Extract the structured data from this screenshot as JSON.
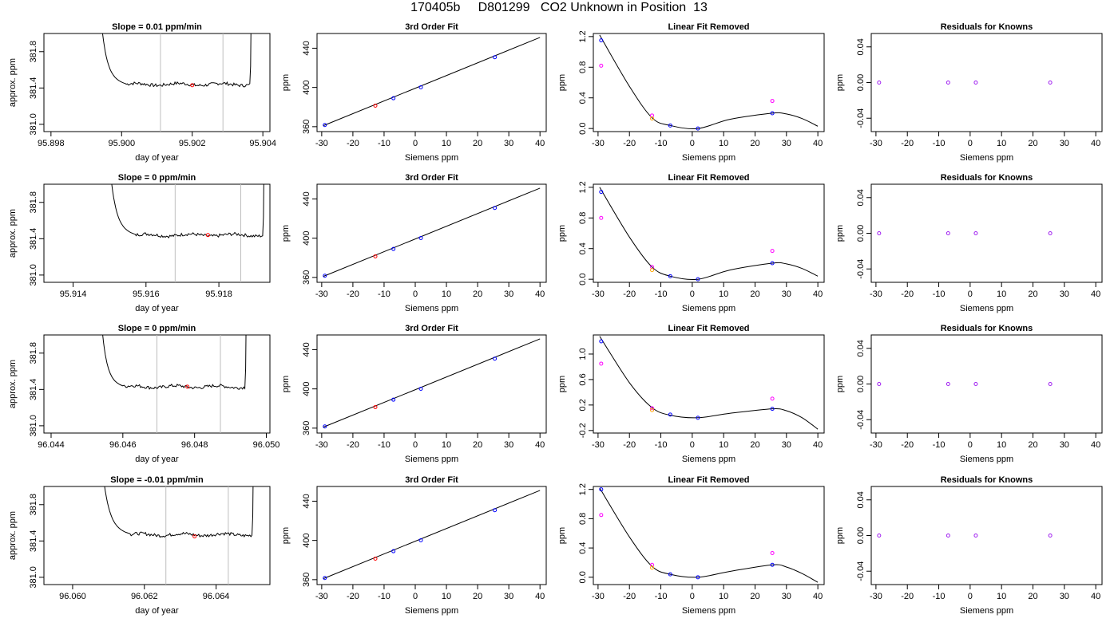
{
  "page_title": "170405b     D801299   CO2 Unknown in Position  13",
  "colors": {
    "line": "#000000",
    "reference": "#bebebe",
    "known_point": "#0000ff",
    "unknown_point": "#ff0000",
    "initial_fit": "#ff00ff",
    "alt_point": "#ffa500",
    "residual_point": "#a020f0"
  },
  "chart_data": [
    {
      "type": "line",
      "panel": "trace",
      "row": 0,
      "title": "Slope =  0.01  ppm/min",
      "xlabel": "day of year",
      "ylabel": "approx. ppm",
      "xlim": [
        95.8978,
        95.9042
      ],
      "ylim": [
        380.92,
        382.0
      ],
      "xticks": [
        95.898,
        95.9,
        95.902,
        95.904
      ],
      "xtick_labels": [
        "95.898",
        "95.900",
        "95.902",
        "95.904"
      ],
      "yticks": [
        381.0,
        381.4,
        381.8
      ],
      "ytick_labels": [
        "381.0",
        "381.4",
        "381.8"
      ],
      "vlines": [
        95.9011,
        95.90287
      ],
      "trace": {
        "x_start": 95.9001,
        "x_end": 95.90363,
        "x_rise": 95.8993,
        "x_end_rise": 95.9036,
        "level": 381.44
      },
      "marker": {
        "x": 95.902,
        "y": 381.43
      }
    },
    {
      "type": "line",
      "panel": "trace",
      "row": 1,
      "title": "Slope =  0  ppm/min",
      "xlabel": "day of year",
      "ylabel": "approx. ppm",
      "xlim": [
        95.9132,
        95.9194
      ],
      "ylim": [
        380.92,
        382.0
      ],
      "xticks": [
        95.914,
        95.916,
        95.918
      ],
      "xtick_labels": [
        "95.914",
        "95.916",
        "95.918"
      ],
      "yticks": [
        381.0,
        381.4,
        381.8
      ],
      "ytick_labels": [
        "381.0",
        "381.4",
        "381.8"
      ],
      "vlines": [
        95.9168,
        95.9186
      ],
      "trace": {
        "x_start": 95.9157,
        "x_end": 95.9192,
        "x_rise": 95.9149,
        "x_end_rise": 95.9192,
        "level": 381.44
      },
      "marker": {
        "x": 95.9177,
        "y": 381.44
      }
    },
    {
      "type": "line",
      "panel": "trace",
      "row": 2,
      "title": "Slope =  0  ppm/min",
      "xlabel": "day of year",
      "ylabel": "approx. ppm",
      "xlim": [
        96.0438,
        96.0501
      ],
      "ylim": [
        380.92,
        382.0
      ],
      "xticks": [
        96.044,
        96.046,
        96.048,
        96.05
      ],
      "xtick_labels": [
        "96.044",
        "96.046",
        "96.048",
        "96.050"
      ],
      "yticks": [
        381.0,
        381.4,
        381.8
      ],
      "ytick_labels": [
        "381.0",
        "381.4",
        "381.8"
      ],
      "vlines": [
        96.04695,
        96.04872
      ],
      "trace": {
        "x_start": 96.046,
        "x_end": 96.0494,
        "x_rise": 96.0453,
        "x_end_rise": 96.0494,
        "level": 381.43
      },
      "marker": {
        "x": 96.0478,
        "y": 381.43
      }
    },
    {
      "type": "line",
      "panel": "trace",
      "row": 3,
      "title": "Slope =  -0.01  ppm/min",
      "xlabel": "day of year",
      "ylabel": "approx. ppm",
      "xlim": [
        96.0592,
        96.0655
      ],
      "ylim": [
        380.92,
        382.0
      ],
      "xticks": [
        96.06,
        96.062,
        96.064
      ],
      "xtick_labels": [
        "96.060",
        "96.062",
        "96.064"
      ],
      "yticks": [
        381.0,
        381.4,
        381.8
      ],
      "ytick_labels": [
        "381.0",
        "381.4",
        "381.8"
      ],
      "vlines": [
        96.0626,
        96.06434
      ],
      "trace": {
        "x_start": 96.0616,
        "x_end": 96.065,
        "x_rise": 96.0607,
        "x_end_rise": 96.065,
        "level": 381.47
      },
      "marker": {
        "x": 96.0634,
        "y": 381.45
      }
    },
    {
      "type": "scatter",
      "panel": "fit",
      "row": 0,
      "title": "3rd Order Fit",
      "xlabel": "Siemens ppm",
      "ylabel": "ppm",
      "xlim": [
        -31.5,
        42.0
      ],
      "ylim": [
        355,
        455
      ],
      "xticks": [
        -30,
        -20,
        -10,
        0,
        10,
        20,
        30,
        40
      ],
      "yticks": [
        360,
        400,
        440
      ],
      "ytick_labels": [
        "360",
        "400",
        "440"
      ],
      "fit_line": [
        [
          -29.5,
          361.0
        ],
        [
          40.0,
          451.0
        ]
      ],
      "known_points": [
        [
          -29,
          361.7
        ],
        [
          -7,
          389.0
        ],
        [
          1.8,
          400.1
        ],
        [
          25.5,
          430.8
        ]
      ],
      "unknown_points": [
        [
          -12.8,
          381.4
        ]
      ]
    },
    {
      "type": "scatter",
      "panel": "fit",
      "row": 1,
      "title": "3rd Order Fit",
      "xlabel": "Siemens ppm",
      "ylabel": "ppm",
      "xlim": [
        -31.5,
        42.0
      ],
      "ylim": [
        355,
        455
      ],
      "xticks": [
        -30,
        -20,
        -10,
        0,
        10,
        20,
        30,
        40
      ],
      "yticks": [
        360,
        400,
        440
      ],
      "ytick_labels": [
        "360",
        "400",
        "440"
      ],
      "fit_line": [
        [
          -29.5,
          361.0
        ],
        [
          40.0,
          451.0
        ]
      ],
      "known_points": [
        [
          -29,
          361.7
        ],
        [
          -7,
          389.0
        ],
        [
          1.8,
          400.1
        ],
        [
          25.5,
          430.8
        ]
      ],
      "unknown_points": [
        [
          -12.8,
          381.4
        ]
      ]
    },
    {
      "type": "scatter",
      "panel": "fit",
      "row": 2,
      "title": "3rd Order Fit",
      "xlabel": "Siemens ppm",
      "ylabel": "ppm",
      "xlim": [
        -31.5,
        42.0
      ],
      "ylim": [
        355,
        455
      ],
      "xticks": [
        -30,
        -20,
        -10,
        0,
        10,
        20,
        30,
        40
      ],
      "yticks": [
        360,
        400,
        440
      ],
      "ytick_labels": [
        "360",
        "400",
        "440"
      ],
      "fit_line": [
        [
          -29.5,
          361.0
        ],
        [
          40.0,
          451.0
        ]
      ],
      "known_points": [
        [
          -29,
          361.7
        ],
        [
          -7,
          389.0
        ],
        [
          1.8,
          400.1
        ],
        [
          25.5,
          430.8
        ]
      ],
      "unknown_points": [
        [
          -12.8,
          381.4
        ]
      ]
    },
    {
      "type": "scatter",
      "panel": "fit",
      "row": 3,
      "title": "3rd Order Fit",
      "xlabel": "Siemens ppm",
      "ylabel": "ppm",
      "xlim": [
        -31.5,
        42.0
      ],
      "ylim": [
        355,
        455
      ],
      "xticks": [
        -30,
        -20,
        -10,
        0,
        10,
        20,
        30,
        40
      ],
      "yticks": [
        360,
        400,
        440
      ],
      "ytick_labels": [
        "360",
        "400",
        "440"
      ],
      "fit_line": [
        [
          -29.5,
          361.0
        ],
        [
          40.0,
          451.0
        ]
      ],
      "known_points": [
        [
          -29,
          361.7
        ],
        [
          -7,
          389.0
        ],
        [
          1.8,
          400.1
        ],
        [
          25.5,
          430.8
        ]
      ],
      "unknown_points": [
        [
          -12.8,
          381.4
        ]
      ]
    },
    {
      "type": "scatter",
      "panel": "linear-removed",
      "row": 0,
      "title": "Linear Fit Removed",
      "xlabel": "Siemens ppm",
      "ylabel": "ppm",
      "xlim": [
        -31.5,
        42.0
      ],
      "ylim": [
        -0.04,
        1.24
      ],
      "xticks": [
        -30,
        -20,
        -10,
        0,
        10,
        20,
        30,
        40
      ],
      "yticks": [
        0.0,
        0.4,
        0.8,
        1.2
      ],
      "ytick_labels": [
        "0.0",
        "0.4",
        "0.8",
        "1.2"
      ],
      "curve_knots": [
        [
          -29.5,
          1.22
        ],
        [
          -20,
          0.55
        ],
        [
          -12.8,
          0.14
        ],
        [
          -7,
          0.04
        ],
        [
          1.8,
          0.0
        ],
        [
          12,
          0.12
        ],
        [
          25.5,
          0.2
        ],
        [
          30,
          0.19
        ],
        [
          35,
          0.13
        ],
        [
          40,
          0.03
        ]
      ],
      "known_points": [
        [
          -29,
          1.15
        ],
        [
          -7,
          0.04
        ],
        [
          1.8,
          0.0
        ],
        [
          25.5,
          0.2
        ]
      ],
      "initial_points": [
        [
          -29,
          0.82
        ],
        [
          -12.8,
          0.17
        ],
        [
          25.5,
          0.36
        ]
      ],
      "alt_points": [
        [
          -12.8,
          0.13
        ]
      ],
      "unknown_points": []
    },
    {
      "type": "scatter",
      "panel": "linear-removed",
      "row": 1,
      "title": "Linear Fit Removed",
      "xlabel": "Siemens ppm",
      "ylabel": "ppm",
      "xlim": [
        -31.5,
        42.0
      ],
      "ylim": [
        -0.04,
        1.24
      ],
      "xticks": [
        -30,
        -20,
        -10,
        0,
        10,
        20,
        30,
        40
      ],
      "yticks": [
        0.0,
        0.4,
        0.8,
        1.2
      ],
      "ytick_labels": [
        "0.0",
        "0.4",
        "0.8",
        "1.2"
      ],
      "curve_knots": [
        [
          -29.5,
          1.2
        ],
        [
          -20,
          0.55
        ],
        [
          -12.8,
          0.16
        ],
        [
          -7,
          0.04
        ],
        [
          1.8,
          0.0
        ],
        [
          12,
          0.12
        ],
        [
          25.5,
          0.21
        ],
        [
          30,
          0.2
        ],
        [
          35,
          0.14
        ],
        [
          40,
          0.04
        ]
      ],
      "known_points": [
        [
          -29,
          1.14
        ],
        [
          -7,
          0.04
        ],
        [
          1.8,
          0.0
        ],
        [
          25.5,
          0.21
        ]
      ],
      "initial_points": [
        [
          -29,
          0.8
        ],
        [
          -12.8,
          0.16
        ],
        [
          25.5,
          0.37
        ]
      ],
      "alt_points": [
        [
          -12.8,
          0.12
        ]
      ],
      "unknown_points": []
    },
    {
      "type": "scatter",
      "panel": "linear-removed",
      "row": 2,
      "title": "Linear Fit Removed",
      "xlabel": "Siemens ppm",
      "ylabel": "ppm",
      "xlim": [
        -31.5,
        42.0
      ],
      "ylim": [
        -0.24,
        1.3
      ],
      "xticks": [
        -30,
        -20,
        -10,
        0,
        10,
        20,
        30,
        40
      ],
      "yticks": [
        -0.2,
        0.2,
        0.6,
        1.0
      ],
      "ytick_labels": [
        "-0.2",
        "0.2",
        "0.6",
        "1.0"
      ],
      "curve_knots": [
        [
          -29.5,
          1.28
        ],
        [
          -20,
          0.55
        ],
        [
          -12.8,
          0.16
        ],
        [
          -7,
          0.04
        ],
        [
          1.8,
          0.0
        ],
        [
          12,
          0.07
        ],
        [
          25.5,
          0.14
        ],
        [
          30,
          0.11
        ],
        [
          35,
          0.0
        ],
        [
          40,
          -0.18
        ]
      ],
      "known_points": [
        [
          -29,
          1.2
        ],
        [
          -7,
          0.05
        ],
        [
          1.8,
          0.0
        ],
        [
          25.5,
          0.14
        ]
      ],
      "initial_points": [
        [
          -29,
          0.85
        ],
        [
          -12.8,
          0.15
        ],
        [
          25.5,
          0.3
        ]
      ],
      "alt_points": [
        [
          -12.8,
          0.12
        ]
      ],
      "unknown_points": []
    },
    {
      "type": "scatter",
      "panel": "linear-removed",
      "row": 3,
      "title": "Linear Fit Removed",
      "xlabel": "Siemens ppm",
      "ylabel": "ppm",
      "xlim": [
        -31.5,
        42.0
      ],
      "ylim": [
        -0.1,
        1.24
      ],
      "xticks": [
        -30,
        -20,
        -10,
        0,
        10,
        20,
        30,
        40
      ],
      "yticks": [
        0.0,
        0.4,
        0.8,
        1.2
      ],
      "ytick_labels": [
        "0.0",
        "0.4",
        "0.8",
        "1.2"
      ],
      "curve_knots": [
        [
          -29.5,
          1.22
        ],
        [
          -20,
          0.55
        ],
        [
          -12.8,
          0.15
        ],
        [
          -7,
          0.04
        ],
        [
          1.8,
          0.0
        ],
        [
          12,
          0.08
        ],
        [
          25.5,
          0.17
        ],
        [
          30,
          0.14
        ],
        [
          35,
          0.05
        ],
        [
          40,
          -0.07
        ]
      ],
      "known_points": [
        [
          -29,
          1.2
        ],
        [
          -7,
          0.04
        ],
        [
          1.8,
          0.0
        ],
        [
          25.5,
          0.17
        ]
      ],
      "initial_points": [
        [
          -29,
          0.85
        ],
        [
          -12.8,
          0.17
        ],
        [
          25.5,
          0.33
        ]
      ],
      "alt_points": [
        [
          -12.8,
          0.13
        ]
      ],
      "unknown_points": []
    },
    {
      "type": "scatter",
      "panel": "residuals",
      "row": 0,
      "title": "Residuals for Knowns",
      "xlabel": "Siemens ppm",
      "ylabel": "ppm",
      "xlim": [
        -31.5,
        42.0
      ],
      "ylim": [
        -0.055,
        0.055
      ],
      "xticks": [
        -30,
        -20,
        -10,
        0,
        10,
        20,
        30,
        40
      ],
      "yticks": [
        -0.04,
        0.0,
        0.04
      ],
      "ytick_labels": [
        "-0.04",
        "0.00",
        "0.04"
      ],
      "residual_points": [
        [
          -29,
          0.0
        ],
        [
          -7,
          0.0
        ],
        [
          1.8,
          0.0
        ],
        [
          25.5,
          0.0
        ]
      ]
    },
    {
      "type": "scatter",
      "panel": "residuals",
      "row": 1,
      "title": "Residuals for Knowns",
      "xlabel": "Siemens ppm",
      "ylabel": "ppm",
      "xlim": [
        -31.5,
        42.0
      ],
      "ylim": [
        -0.055,
        0.055
      ],
      "xticks": [
        -30,
        -20,
        -10,
        0,
        10,
        20,
        30,
        40
      ],
      "yticks": [
        -0.04,
        0.0,
        0.04
      ],
      "ytick_labels": [
        "-0.04",
        "0.00",
        "0.04"
      ],
      "residual_points": [
        [
          -29,
          0.0
        ],
        [
          -7,
          0.0
        ],
        [
          1.8,
          0.0
        ],
        [
          25.5,
          0.0
        ]
      ]
    },
    {
      "type": "scatter",
      "panel": "residuals",
      "row": 2,
      "title": "Residuals for Knowns",
      "xlabel": "Siemens ppm",
      "ylabel": "ppm",
      "xlim": [
        -31.5,
        42.0
      ],
      "ylim": [
        -0.055,
        0.055
      ],
      "xticks": [
        -30,
        -20,
        -10,
        0,
        10,
        20,
        30,
        40
      ],
      "yticks": [
        -0.04,
        0.0,
        0.04
      ],
      "ytick_labels": [
        "-0.04",
        "0.00",
        "0.04"
      ],
      "residual_points": [
        [
          -29,
          0.0
        ],
        [
          -7,
          0.0
        ],
        [
          1.8,
          0.0
        ],
        [
          25.5,
          0.0
        ]
      ]
    },
    {
      "type": "scatter",
      "panel": "residuals",
      "row": 3,
      "title": "Residuals for Knowns",
      "xlabel": "Siemens ppm",
      "ylabel": "ppm",
      "xlim": [
        -31.5,
        42.0
      ],
      "ylim": [
        -0.055,
        0.055
      ],
      "xticks": [
        -30,
        -20,
        -10,
        0,
        10,
        20,
        30,
        40
      ],
      "yticks": [
        -0.04,
        0.0,
        0.04
      ],
      "ytick_labels": [
        "-0.04",
        "0.00",
        "0.04"
      ],
      "residual_points": [
        [
          -29,
          0.0
        ],
        [
          -7,
          0.0
        ],
        [
          1.8,
          0.0
        ],
        [
          25.5,
          0.0
        ]
      ]
    }
  ]
}
